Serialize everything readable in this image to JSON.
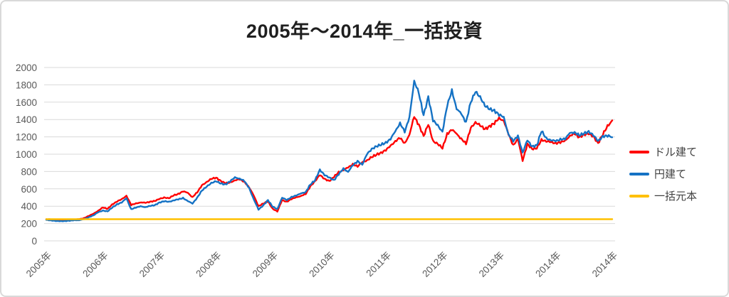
{
  "title": "2005年～2014年_一括投資",
  "colors": {
    "usd_line": "#ff0000",
    "jpy_line": "#1572c4",
    "principal_line": "#ffc000",
    "gridline": "#d9d9d9",
    "axis_text": "#595959",
    "legend_text": "#404040",
    "title_text": "#1f1f1f",
    "card_border": "#d9d9d9"
  },
  "chart_data": {
    "type": "line",
    "title": "2005年～2014年_一括投資",
    "xlabel": "",
    "ylabel": "",
    "ylim": [
      0,
      2000
    ],
    "y_ticks": [
      0,
      200,
      400,
      600,
      800,
      1000,
      1200,
      1400,
      1600,
      1800,
      2000
    ],
    "x_tick_labels": [
      "2005年",
      "2006年",
      "2007年",
      "2008年",
      "2009年",
      "2010年",
      "2011年",
      "2012年",
      "2013年",
      "2014年",
      "2014年"
    ],
    "points_per_tick": 12,
    "grid": "horizontal",
    "legend_position": "right",
    "series": [
      {
        "name": "ドル建て",
        "color": "#ff0000",
        "values": [
          250,
          247,
          243,
          239,
          237,
          241,
          246,
          250,
          262,
          288,
          312,
          348,
          385,
          370,
          420,
          455,
          480,
          520,
          415,
          430,
          445,
          438,
          452,
          460,
          484,
          500,
          492,
          525,
          540,
          574,
          552,
          505,
          560,
          640,
          680,
          715,
          729,
          690,
          665,
          672,
          700,
          710,
          680,
          620,
          520,
          400,
          430,
          455,
          370,
          340,
          470,
          450,
          485,
          500,
          520,
          540,
          630,
          690,
          760,
          715,
          690,
          740,
          790,
          820,
          845,
          885,
          860,
          905,
          930,
          965,
          995,
          1015,
          1050,
          1095,
          1150,
          1190,
          1120,
          1230,
          1430,
          1340,
          1210,
          1345,
          1150,
          1120,
          1070,
          1230,
          1290,
          1230,
          1180,
          1120,
          1300,
          1370,
          1330,
          1290,
          1320,
          1360,
          1410,
          1390,
          1230,
          1100,
          1180,
          920,
          1120,
          1060,
          1070,
          1165,
          1150,
          1140,
          1125,
          1140,
          1150,
          1215,
          1235,
          1195,
          1225,
          1235,
          1205,
          1125,
          1230,
          1320,
          1390
        ]
      },
      {
        "name": "円建て",
        "color": "#1572c4",
        "values": [
          243,
          236,
          230,
          227,
          229,
          233,
          238,
          240,
          250,
          272,
          295,
          330,
          350,
          340,
          385,
          420,
          445,
          490,
          365,
          385,
          398,
          390,
          402,
          412,
          442,
          458,
          450,
          467,
          480,
          492,
          462,
          428,
          500,
          580,
          625,
          668,
          688,
          662,
          650,
          690,
          729,
          720,
          690,
          610,
          480,
          360,
          410,
          470,
          395,
          365,
          500,
          470,
          505,
          525,
          545,
          565,
          650,
          700,
          820,
          760,
          730,
          700,
          770,
          830,
          800,
          870,
          920,
          880,
          1000,
          1060,
          1090,
          1110,
          1130,
          1180,
          1260,
          1360,
          1260,
          1420,
          1850,
          1700,
          1450,
          1660,
          1390,
          1330,
          1260,
          1560,
          1730,
          1530,
          1460,
          1370,
          1600,
          1720,
          1660,
          1560,
          1520,
          1500,
          1460,
          1420,
          1230,
          1150,
          1210,
          1020,
          1160,
          1090,
          1100,
          1270,
          1180,
          1165,
          1150,
          1170,
          1180,
          1240,
          1255,
          1215,
          1240,
          1260,
          1220,
          1150,
          1205,
          1215,
          1195
        ]
      },
      {
        "name": "一括元本",
        "color": "#ffc000",
        "constant": 250
      }
    ]
  },
  "legend": {
    "items": [
      {
        "label": "ドル建て"
      },
      {
        "label": "円建て"
      },
      {
        "label": "一括元本"
      }
    ]
  }
}
